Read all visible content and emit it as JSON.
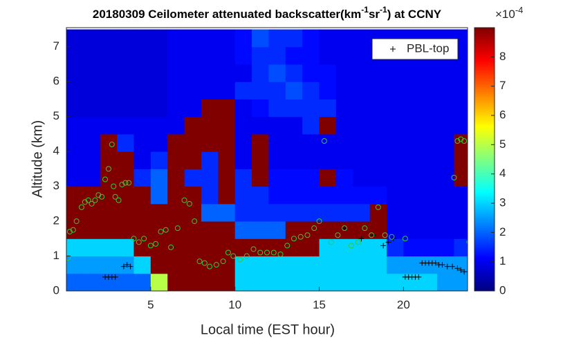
{
  "chart_data": {
    "type": "heatmap",
    "title": [
      "20180309 Ceilometer attenuated backscatter(km",
      "-1",
      "sr",
      "-1",
      ") at CCNY"
    ],
    "xlabel": "Local time (EST hour)",
    "ylabel": "Altitude (km)",
    "xlim": [
      0,
      23.8
    ],
    "xticks": [
      5,
      10,
      15,
      20
    ],
    "ylim": [
      0,
      7.55
    ],
    "yticks": [
      0,
      1,
      2,
      3,
      4,
      5,
      6,
      7
    ],
    "colormap": "jet",
    "clim": [
      0,
      9
    ],
    "cticks": [
      0,
      1,
      2,
      3,
      4,
      5,
      6,
      7,
      8
    ],
    "colorbar_label": {
      "base": "×10",
      "exponent": "-4"
    },
    "x_edges": [
      0,
      1,
      2,
      3,
      4,
      5,
      6,
      7,
      8,
      9,
      10,
      11,
      12,
      13,
      14,
      15,
      16,
      17,
      18,
      19,
      20,
      21,
      22,
      23,
      24
    ],
    "y_edges": [
      0,
      0.5,
      1,
      1.5,
      2,
      2.5,
      3,
      3.5,
      4,
      4.5,
      5,
      5.5,
      6,
      6.5,
      7,
      7.5
    ],
    "z": [
      [
        2,
        2,
        2,
        2,
        2,
        5,
        9,
        9,
        9,
        9,
        3,
        3,
        3,
        3,
        3,
        3,
        3,
        3,
        3,
        3,
        3,
        3,
        2.5,
        2.5
      ],
      [
        2.5,
        2.5,
        2.5,
        2.5,
        3,
        9,
        9,
        9,
        9,
        9,
        3,
        3,
        3,
        3,
        3,
        3,
        3,
        3,
        3,
        2.5,
        2.5,
        2.5,
        2.5,
        2.5
      ],
      [
        3,
        3,
        3,
        3,
        9,
        9,
        9,
        9,
        9,
        9,
        9,
        9,
        9,
        9,
        9,
        3,
        3,
        3,
        3,
        1.5,
        1.2,
        1.2,
        1.2,
        1.5
      ],
      [
        9,
        9,
        9,
        9,
        9,
        9,
        9,
        9,
        9,
        9,
        2,
        2,
        2,
        9,
        9,
        9,
        9,
        9,
        9,
        1,
        1,
        1,
        1,
        1
      ],
      [
        9,
        9,
        9,
        9,
        9,
        9,
        9,
        9,
        2,
        2,
        1.5,
        1.5,
        1.5,
        1.5,
        1.5,
        1.5,
        1.5,
        1.5,
        9,
        1,
        1,
        1,
        1,
        1
      ],
      [
        9,
        9,
        9,
        9,
        9,
        2,
        9,
        9,
        1.5,
        9,
        1.5,
        1.5,
        1.2,
        1.2,
        1.2,
        1.2,
        1.2,
        1.2,
        1.2,
        1,
        1,
        1,
        1,
        1
      ],
      [
        1,
        1,
        9,
        9,
        1.5,
        2,
        9,
        1.5,
        1.5,
        9,
        1.5,
        9,
        1.2,
        1.2,
        1.2,
        9,
        1.2,
        1,
        1,
        1,
        1,
        1,
        1,
        9
      ],
      [
        1,
        1,
        9,
        9,
        1,
        1.5,
        9,
        9,
        1.5,
        9,
        1,
        9,
        1,
        1,
        1,
        1,
        1,
        1,
        1,
        1,
        1,
        1,
        1,
        9
      ],
      [
        1,
        1,
        9,
        1.5,
        1,
        1,
        9,
        9,
        9,
        9,
        1,
        9,
        1,
        1,
        1,
        1,
        1,
        1,
        1,
        1,
        1,
        1,
        1,
        9
      ],
      [
        1,
        1,
        1,
        1,
        1,
        1,
        1,
        9,
        9,
        9,
        1,
        1,
        1,
        1,
        1.5,
        9,
        1,
        1,
        1,
        1,
        1,
        1,
        1,
        1
      ],
      [
        0.8,
        0.8,
        0.8,
        0.8,
        0.8,
        0.8,
        1,
        1,
        9,
        9,
        1,
        1.2,
        1.5,
        1.5,
        1.5,
        1.5,
        1,
        1,
        1,
        1,
        1,
        1,
        1,
        1
      ],
      [
        0.8,
        0.8,
        0.8,
        0.8,
        0.8,
        0.8,
        1,
        1,
        1,
        1,
        1.5,
        1.5,
        1.5,
        1.8,
        1.5,
        1.2,
        1,
        1,
        1,
        1,
        1,
        1,
        1,
        1
      ],
      [
        0.8,
        0.8,
        0.8,
        0.8,
        0.8,
        0.8,
        1,
        1,
        1,
        1,
        1,
        1.5,
        1.8,
        1.5,
        1.2,
        1.2,
        1,
        1,
        1,
        1,
        1,
        1,
        1,
        1
      ],
      [
        0.8,
        0.8,
        0.8,
        0.8,
        0.8,
        0.8,
        1,
        1,
        1,
        1,
        1.2,
        1.5,
        1.5,
        1.2,
        1.2,
        1,
        1,
        1,
        1,
        1,
        1,
        1,
        1,
        1
      ],
      [
        0.8,
        0.8,
        0.8,
        0.8,
        0.8,
        0.8,
        1,
        1,
        1,
        1,
        1.2,
        1.8,
        1.5,
        1.5,
        1.2,
        1,
        1,
        1,
        1,
        1,
        1,
        1,
        1,
        1
      ]
    ],
    "series": [
      {
        "name": "PBL-top",
        "marker": "plus",
        "color": "#000000",
        "x": [
          2.3,
          2.5,
          2.7,
          2.9,
          3.4,
          3.6,
          3.8,
          16.5,
          17.5,
          18.2,
          18.8,
          19.1,
          19.4,
          20.1,
          20.3,
          20.5,
          20.7,
          20.9,
          21.1,
          21.3,
          21.5,
          21.7,
          21.9,
          22.1,
          22.3,
          22.6,
          22.9,
          23.2,
          23.4,
          23.6,
          23.8
        ],
        "values": [
          0.4,
          0.4,
          0.4,
          0.4,
          0.7,
          0.75,
          0.7,
          1.8,
          1.5,
          1.6,
          1.3,
          1.4,
          1.5,
          0.4,
          0.4,
          0.4,
          0.4,
          0.4,
          0.8,
          0.8,
          0.8,
          0.8,
          0.8,
          0.75,
          0.75,
          0.7,
          0.7,
          0.65,
          0.6,
          0.55,
          0.55
        ]
      },
      {
        "marker": "circle",
        "color": "#33cc33",
        "x": [
          0.1,
          0.2,
          0.4,
          0.6,
          0.9,
          1.1,
          1.3,
          1.5,
          1.7,
          1.9,
          2.1,
          2.3,
          2.5,
          2.7,
          2.8,
          2.9,
          3.1,
          3.3,
          3.5,
          3.7,
          4.0,
          4.3,
          4.6,
          5.0,
          5.3,
          5.6,
          5.9,
          6.2,
          6.6,
          7.0,
          7.3,
          7.6,
          7.9,
          8.2,
          8.5,
          8.9,
          9.3,
          9.6,
          9.9,
          10.3,
          10.7,
          11.1,
          11.5,
          11.9,
          12.3,
          12.7,
          13.1,
          13.5,
          13.9,
          14.3,
          14.7,
          15.0,
          15.3,
          15.7,
          16.1,
          16.5,
          16.9,
          17.3,
          17.7,
          18.1,
          18.5,
          18.9,
          19.3,
          20.1,
          23.0,
          23.2,
          23.4,
          23.6,
          23.9
        ],
        "values": [
          0.95,
          1.7,
          1.75,
          2.0,
          2.4,
          2.55,
          2.6,
          2.5,
          2.6,
          2.75,
          2.7,
          3.2,
          3.5,
          4.2,
          3.0,
          2.7,
          2.6,
          3.05,
          3.1,
          3.1,
          1.5,
          1.4,
          1.5,
          1.3,
          1.35,
          1.7,
          1.75,
          1.25,
          1.8,
          2.6,
          2.5,
          2.0,
          0.85,
          0.8,
          0.7,
          0.75,
          0.85,
          1.1,
          1.0,
          0.9,
          1.0,
          1.2,
          1.1,
          1.1,
          1.1,
          1.05,
          1.3,
          1.5,
          1.55,
          1.6,
          1.8,
          2.0,
          4.3,
          1.4,
          1.6,
          1.8,
          1.3,
          1.4,
          1.8,
          1.6,
          2.4,
          1.6,
          1.55,
          1.5,
          3.25,
          4.3,
          4.35,
          4.3,
          1.4
        ]
      }
    ],
    "legend": "upper right"
  }
}
